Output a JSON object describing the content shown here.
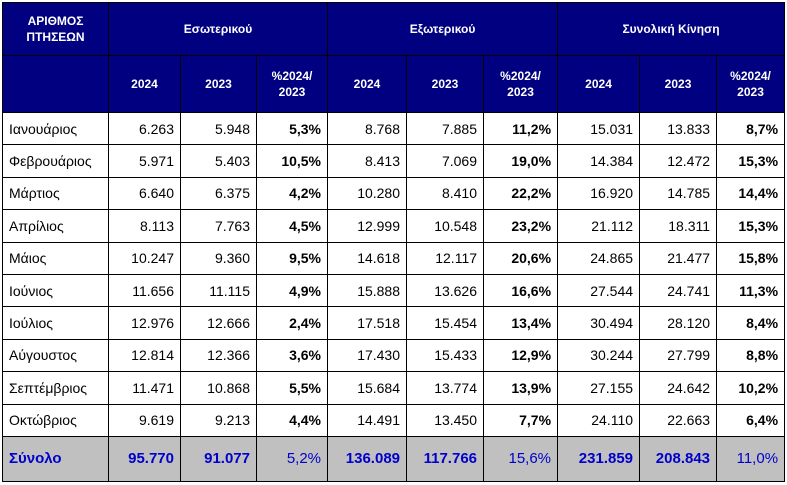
{
  "header": {
    "flights_label": "ΑΡΙΘΜΟΣ ΠΤΗΣΕΩΝ",
    "domestic": "Εσωτερικού",
    "international": "Εξωτερικού",
    "total_traffic": "Συνολική Κίνηση",
    "col_2024": "2024",
    "col_2023": "2023",
    "col_pct": "%2024/ 2023"
  },
  "rows": [
    {
      "month": "Ιανουάριος",
      "d24": "6.263",
      "d23": "5.948",
      "dp": "5,3%",
      "i24": "8.768",
      "i23": "7.885",
      "ip": "11,2%",
      "t24": "15.031",
      "t23": "13.833",
      "tp": "8,7%"
    },
    {
      "month": "Φεβρουάριος",
      "d24": "5.971",
      "d23": "5.403",
      "dp": "10,5%",
      "i24": "8.413",
      "i23": "7.069",
      "ip": "19,0%",
      "t24": "14.384",
      "t23": "12.472",
      "tp": "15,3%"
    },
    {
      "month": "Μάρτιος",
      "d24": "6.640",
      "d23": "6.375",
      "dp": "4,2%",
      "i24": "10.280",
      "i23": "8.410",
      "ip": "22,2%",
      "t24": "16.920",
      "t23": "14.785",
      "tp": "14,4%"
    },
    {
      "month": "Απρίλιος",
      "d24": "8.113",
      "d23": "7.763",
      "dp": "4,5%",
      "i24": "12.999",
      "i23": "10.548",
      "ip": "23,2%",
      "t24": "21.112",
      "t23": "18.311",
      "tp": "15,3%"
    },
    {
      "month": "Μάιος",
      "d24": "10.247",
      "d23": "9.360",
      "dp": "9,5%",
      "i24": "14.618",
      "i23": "12.117",
      "ip": "20,6%",
      "t24": "24.865",
      "t23": "21.477",
      "tp": "15,8%"
    },
    {
      "month": "Ιούνιος",
      "d24": "11.656",
      "d23": "11.115",
      "dp": "4,9%",
      "i24": "15.888",
      "i23": "13.626",
      "ip": "16,6%",
      "t24": "27.544",
      "t23": "24.741",
      "tp": "11,3%"
    },
    {
      "month": "Ιούλιος",
      "d24": "12.976",
      "d23": "12.666",
      "dp": "2,4%",
      "i24": "17.518",
      "i23": "15.454",
      "ip": "13,4%",
      "t24": "30.494",
      "t23": "28.120",
      "tp": "8,4%"
    },
    {
      "month": "Αύγουστος",
      "d24": "12.814",
      "d23": "12.366",
      "dp": "3,6%",
      "i24": "17.430",
      "i23": "15.433",
      "ip": "12,9%",
      "t24": "30.244",
      "t23": "27.799",
      "tp": "8,8%"
    },
    {
      "month": "Σεπτέμβριος",
      "d24": "11.471",
      "d23": "10.868",
      "dp": "5,5%",
      "i24": "15.684",
      "i23": "13.774",
      "ip": "13,9%",
      "t24": "27.155",
      "t23": "24.642",
      "tp": "10,2%"
    },
    {
      "month": "Οκτώβριος",
      "d24": "9.619",
      "d23": "9.213",
      "dp": "4,4%",
      "i24": "14.491",
      "i23": "13.450",
      "ip": "7,7%",
      "t24": "24.110",
      "t23": "22.663",
      "tp": "6,4%"
    }
  ],
  "total": {
    "month": "Σύνολο",
    "d24": "95.770",
    "d23": "91.077",
    "dp": "5,2%",
    "i24": "136.089",
    "i23": "117.766",
    "ip": "15,6%",
    "t24": "231.859",
    "t23": "208.843",
    "tp": "11,0%"
  }
}
